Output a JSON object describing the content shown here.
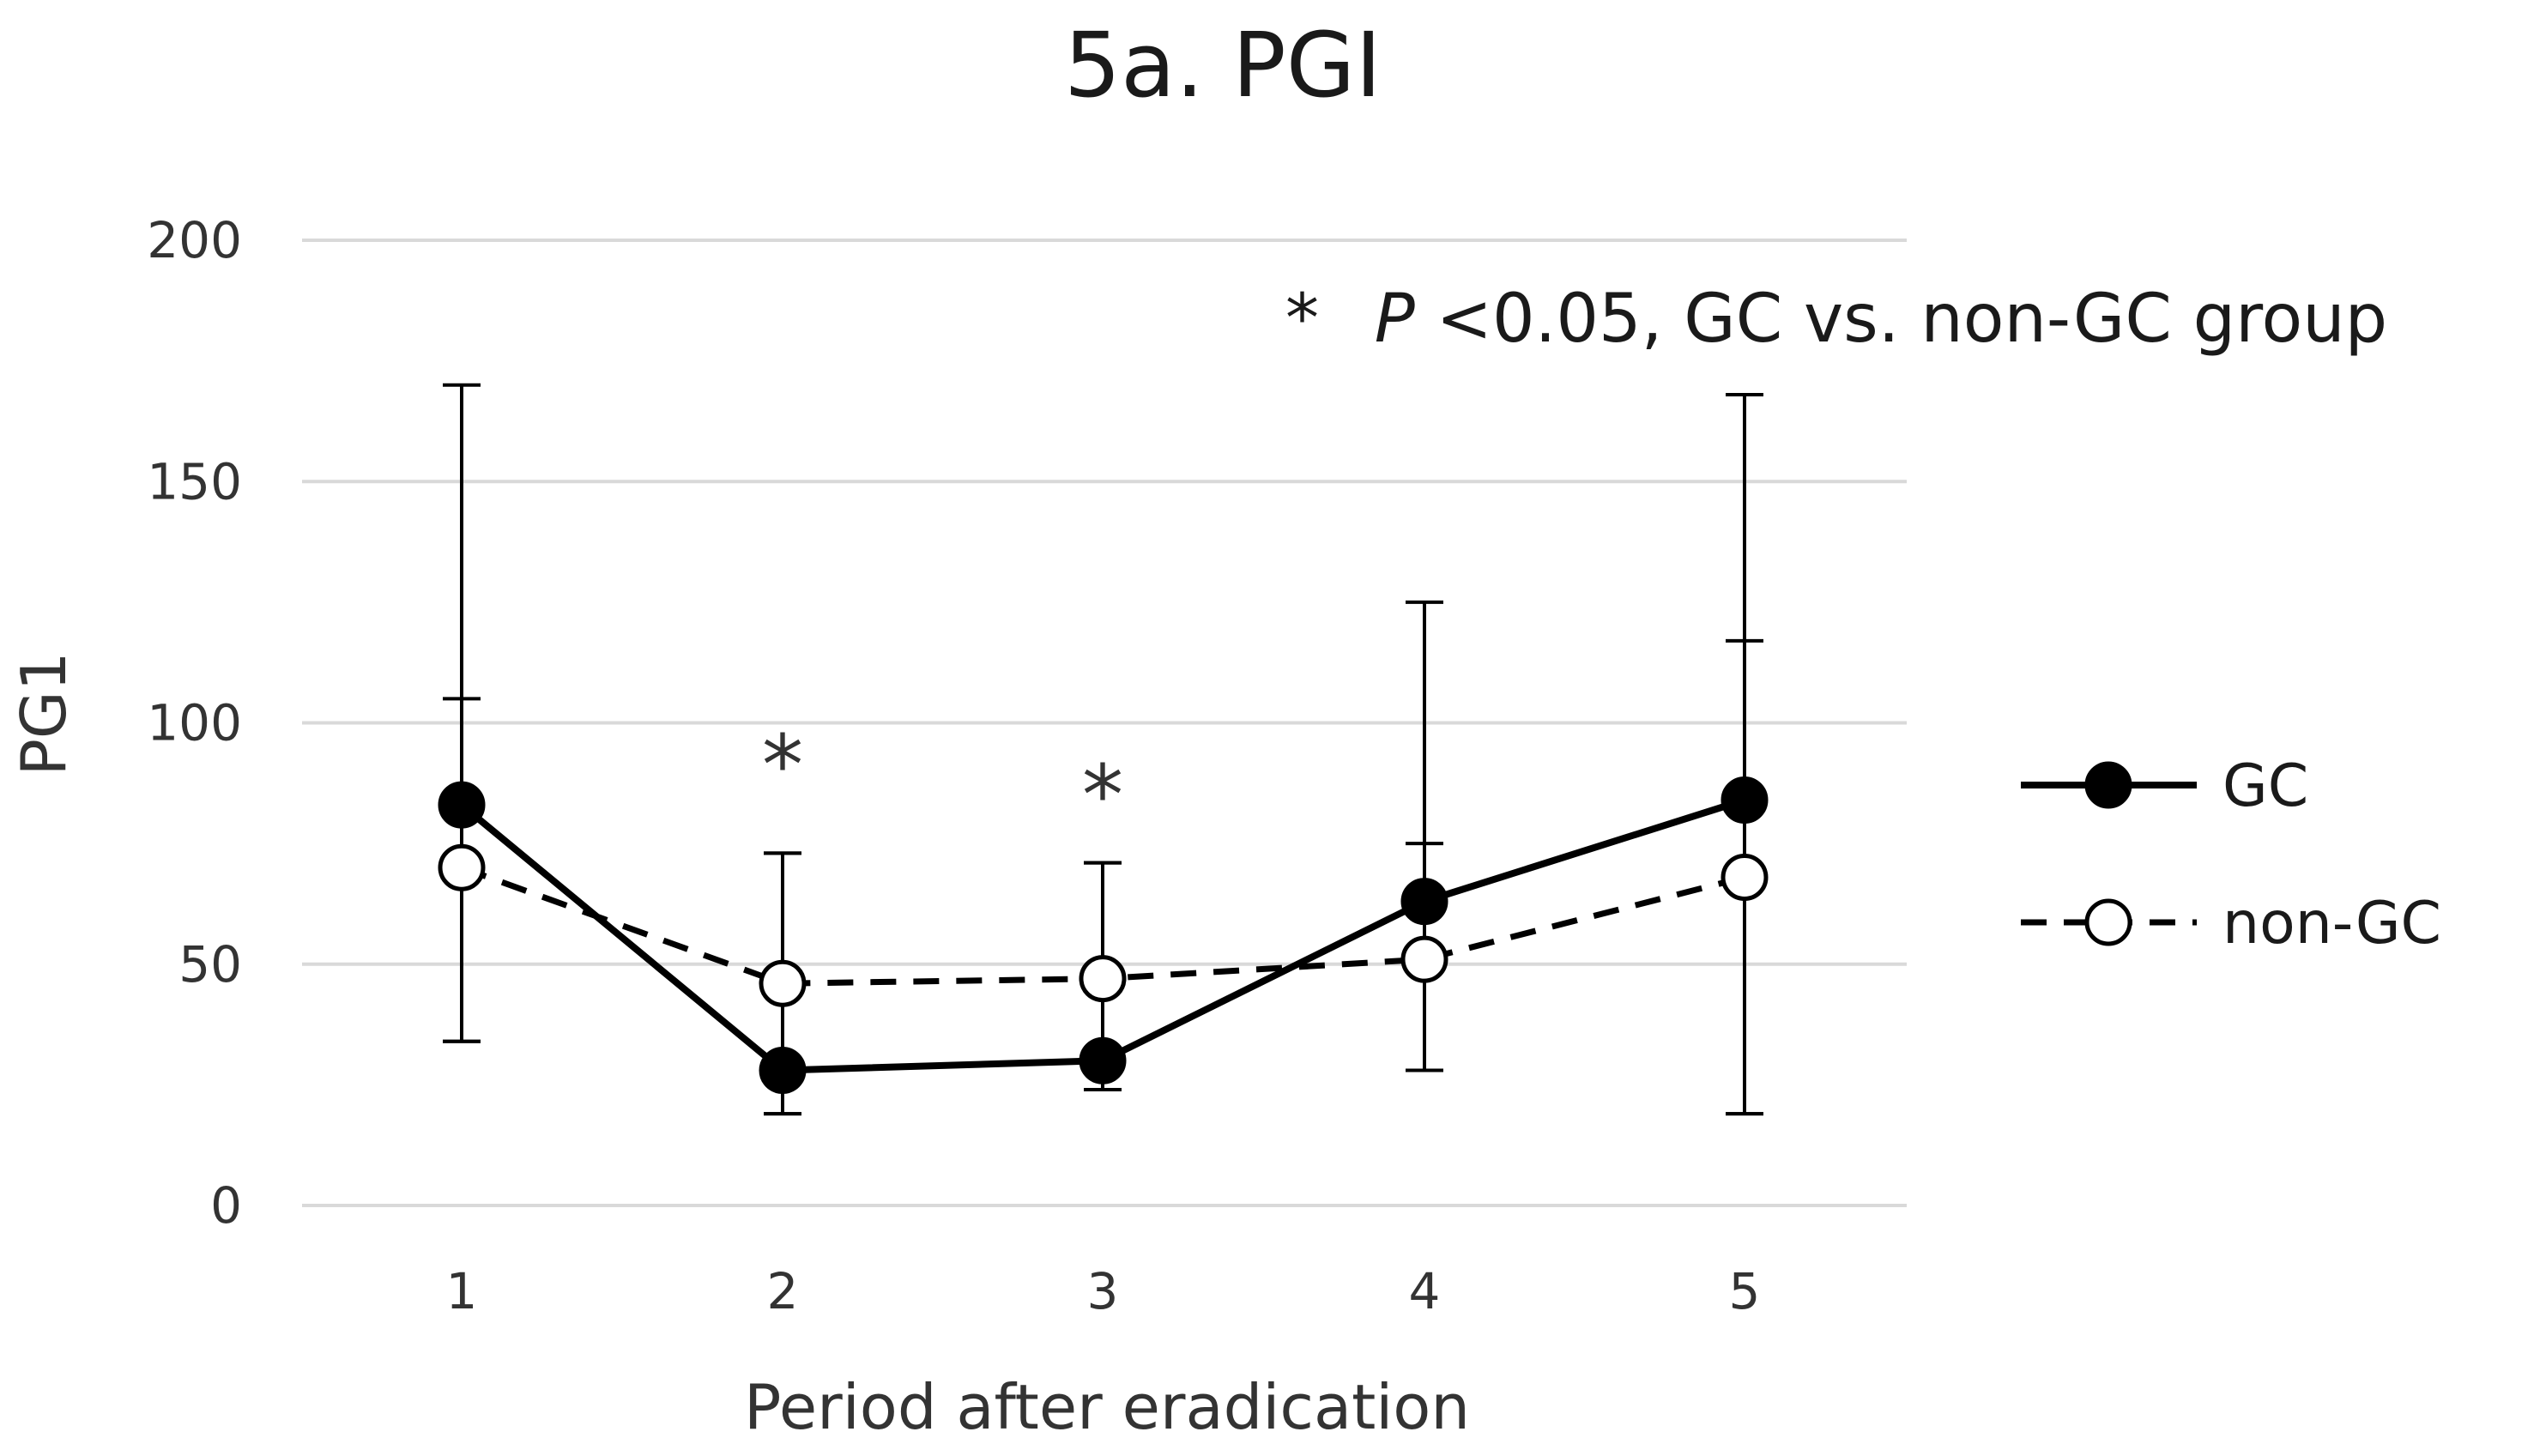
{
  "chart_data": {
    "type": "line",
    "title": "5a. PGI",
    "xlabel": "Period after eradication",
    "ylabel": "PG1",
    "categories": [
      "1",
      "2",
      "3",
      "4",
      "5"
    ],
    "ylim": [
      0,
      200
    ],
    "yticks": [
      0,
      50,
      100,
      150,
      200
    ],
    "grid": true,
    "legend_position": "right",
    "series": [
      {
        "name": "GC",
        "style": "solid",
        "marker": "filled-circle",
        "color": "#000000",
        "values": [
          83,
          28,
          30,
          63,
          84
        ],
        "error_upper": [
          170,
          73,
          71,
          125,
          168
        ],
        "error_lower": [
          34,
          19,
          24,
          28,
          19
        ]
      },
      {
        "name": "non-GC",
        "style": "dashed",
        "marker": "open-circle",
        "color": "#000000",
        "values": [
          70,
          46,
          47,
          51,
          68
        ],
        "error_upper": [
          105,
          73,
          71,
          75,
          117
        ],
        "error_lower": [
          34,
          19,
          24,
          28,
          19
        ]
      }
    ],
    "significance": {
      "marker": "*",
      "categories": [
        "2",
        "3"
      ],
      "note_star": "*",
      "note_p": "P",
      "note_rest": "<0.05, GC vs. non-GC group"
    }
  }
}
